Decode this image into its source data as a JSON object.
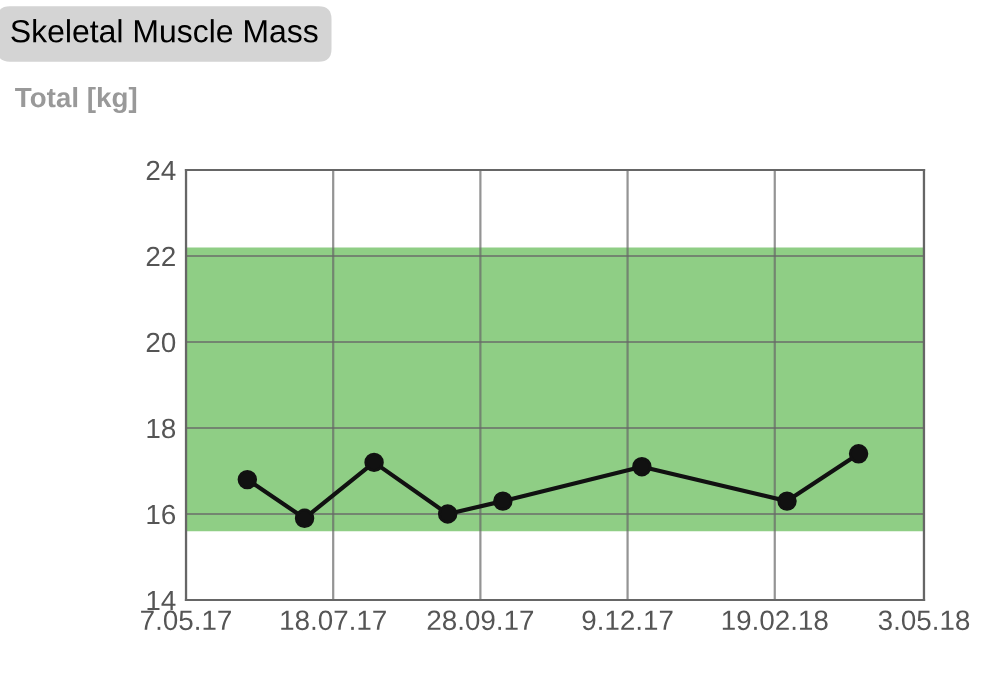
{
  "chart_data": {
    "type": "line",
    "title": "Skeletal Muscle Mass",
    "ylabel": "Total [kg]",
    "x": [
      "2017-06-06",
      "2017-07-04",
      "2017-08-07",
      "2017-09-12",
      "2017-10-09",
      "2017-12-16",
      "2018-02-25",
      "2018-04-01"
    ],
    "series": [
      {
        "color": "#111111",
        "values": [
          16.8,
          15.9,
          17.2,
          16.0,
          16.3,
          17.1,
          16.3,
          17.4
        ]
      }
    ],
    "xlim": [
      "2017-05-07",
      "2018-05-03"
    ],
    "xticks": [
      {
        "value": "2017-05-07",
        "label": "7.05.17"
      },
      {
        "value": "2017-07-18",
        "label": "18.07.17"
      },
      {
        "value": "2017-09-28",
        "label": "28.09.17"
      },
      {
        "value": "2017-12-09",
        "label": "9.12.17"
      },
      {
        "value": "2018-02-19",
        "label": "19.02.18"
      },
      {
        "value": "2018-05-03",
        "label": "3.05.18"
      }
    ],
    "ylim": [
      14,
      24
    ],
    "yticks": [
      14,
      16,
      18,
      20,
      22,
      24
    ],
    "bands": [
      {
        "axis": "y",
        "from": 15.6,
        "to": 22.2,
        "color": "#8fce85"
      }
    ],
    "grid": true,
    "marker": "circle",
    "line_style": "solid",
    "legend": false
  }
}
